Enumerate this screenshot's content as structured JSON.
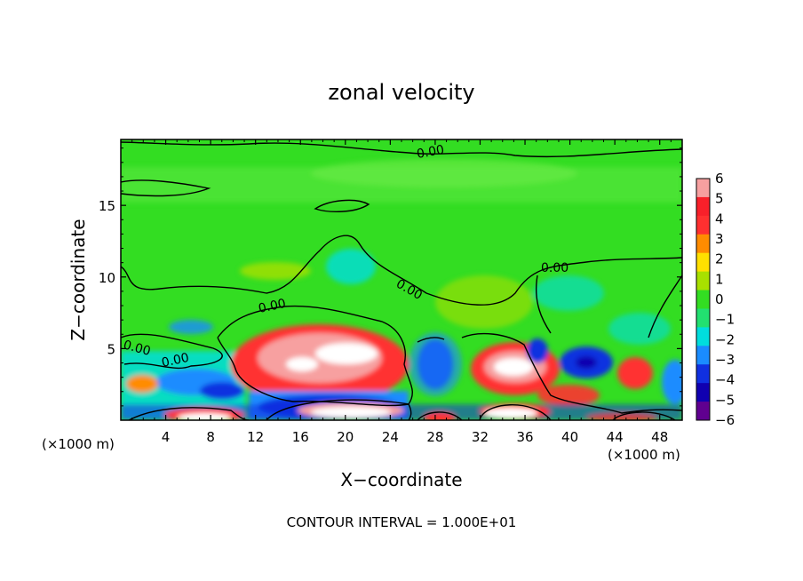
{
  "chart_data": {
    "type": "heatmap",
    "title": "zonal velocity",
    "xlabel": "X−coordinate",
    "ylabel": "Z−coordinate",
    "x_unit": "(×1000 m)",
    "y_unit": "(×1000 m)",
    "xlim": [
      0,
      50
    ],
    "ylim": [
      0,
      19.6
    ],
    "x_ticks": [
      4,
      8,
      12,
      16,
      20,
      24,
      28,
      32,
      36,
      40,
      44,
      48
    ],
    "y_ticks": [
      5,
      10,
      15
    ],
    "x_tick_labels": [
      "4",
      "8",
      "12",
      "16",
      "20",
      "24",
      "28",
      "32",
      "36",
      "40",
      "44",
      "48"
    ],
    "y_tick_labels": [
      "5",
      "10",
      "15"
    ],
    "colorbar": {
      "min": -6,
      "max": 6,
      "ticks": [
        6,
        5,
        4,
        3,
        2,
        1,
        0,
        -1,
        -2,
        -3,
        -4,
        -5,
        -6
      ],
      "tick_labels": [
        "6",
        "5",
        "4",
        "3",
        "2",
        "1",
        "0",
        "−1",
        "−2",
        "−3",
        "−4",
        "−5",
        "−6"
      ],
      "colors": [
        "#f7a0a0",
        "#f8202a",
        "#ff3030",
        "#ff8c00",
        "#ffe000",
        "#a8e000",
        "#33dd22",
        "#22e070",
        "#00dddd",
        "#1a8cff",
        "#1030e0",
        "#1000b0",
        "#600090"
      ]
    },
    "contour_labels": [
      "0.00",
      "0.00",
      "0.00",
      "0.00",
      "0.00",
      "0.00"
    ],
    "footer": "CONTOUR INTERVAL = 1.000E+01",
    "grid": false,
    "legend": "colorbar-right"
  }
}
